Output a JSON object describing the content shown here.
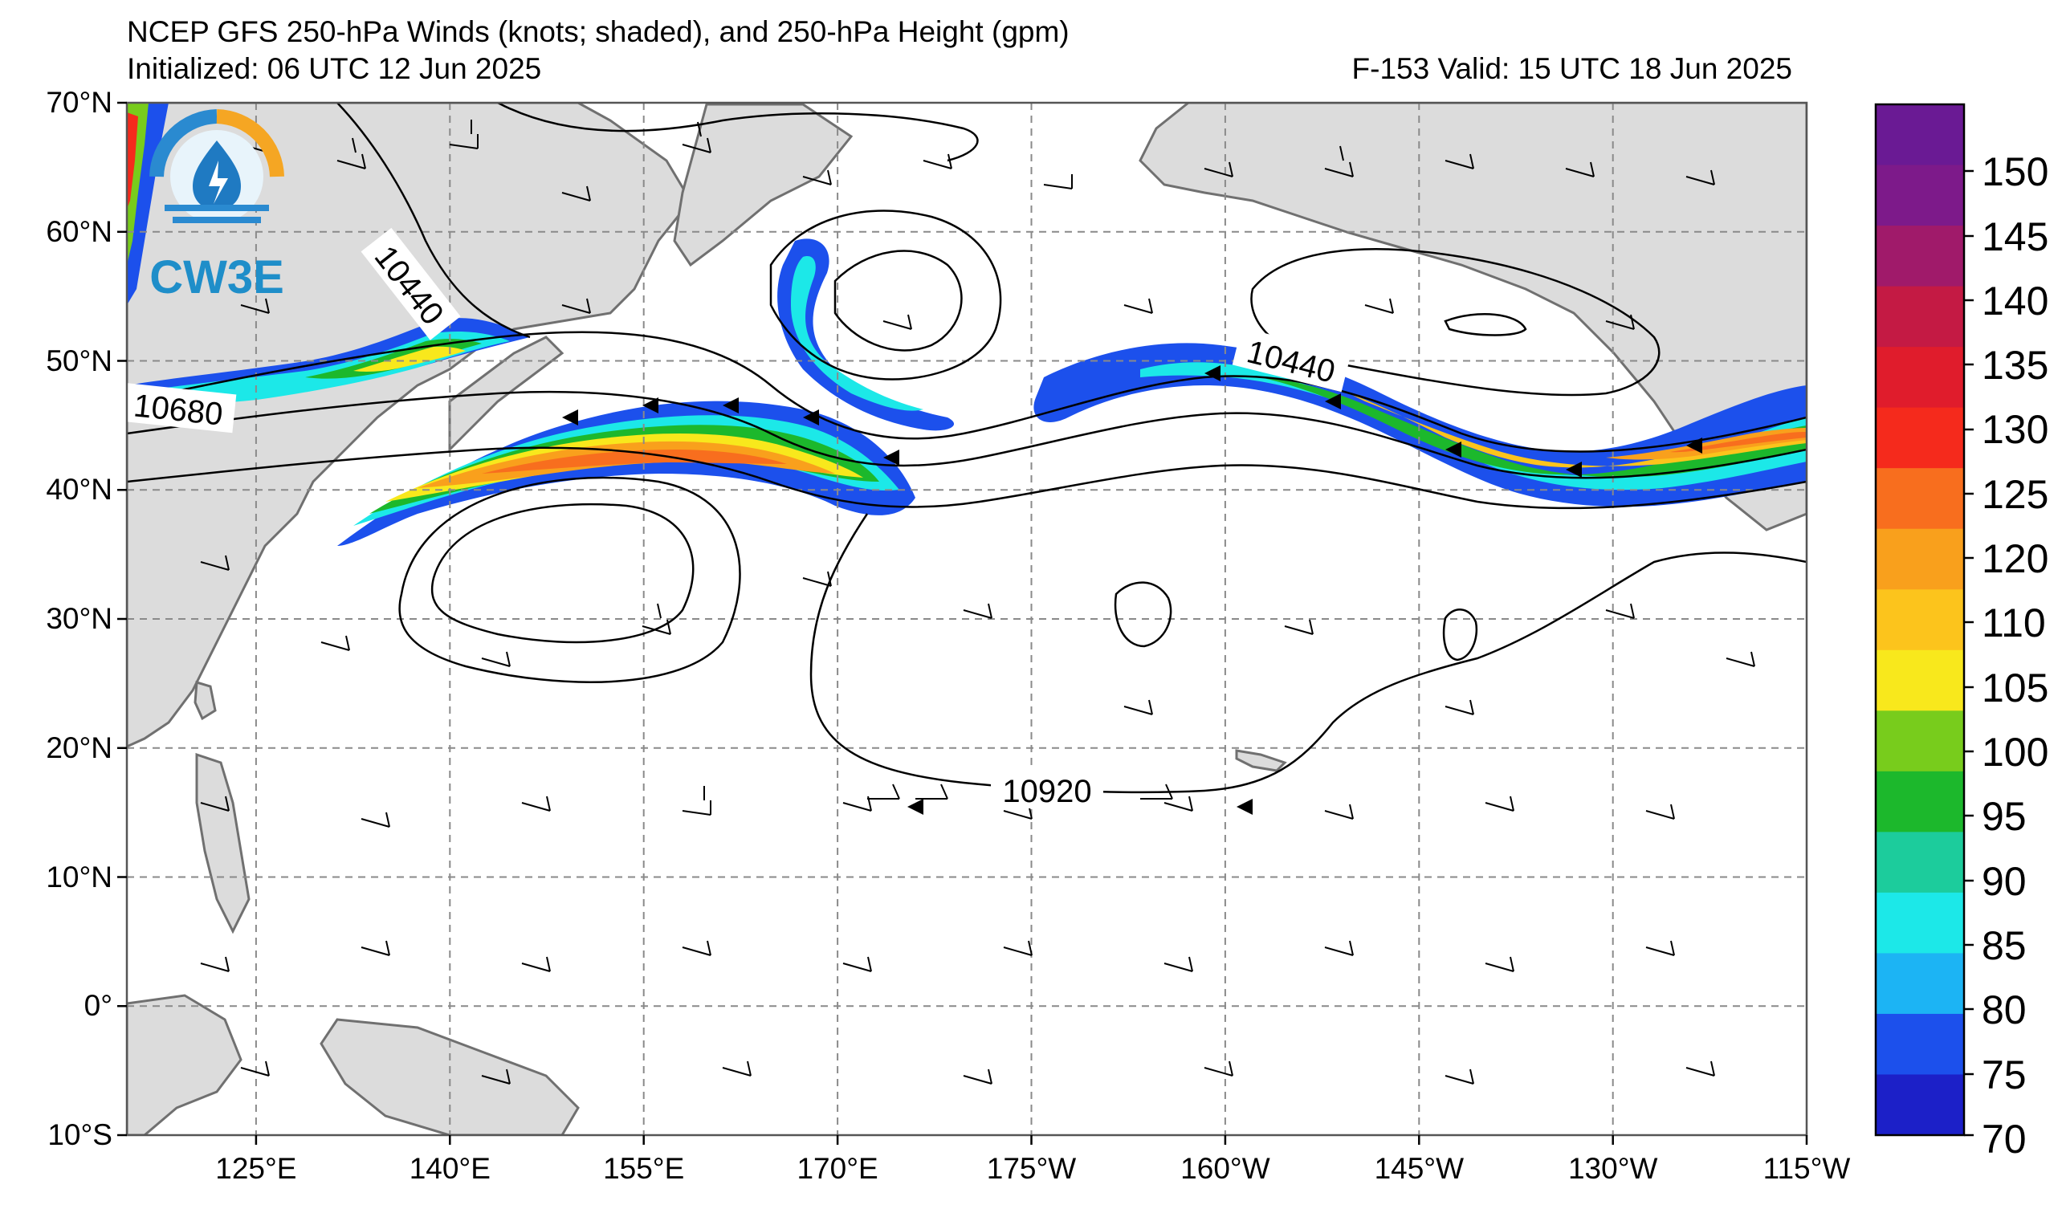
{
  "title": "NCEP GFS 250-hPa Winds (knots; shaded), and 250-hPa Height (gpm)",
  "initialized": "Initialized: 06 UTC 12 Jun 2025",
  "valid": "F-153  Valid: 15 UTC 18 Jun 2025",
  "logo_text": "CW3E",
  "lat_labels": [
    "70°N",
    "60°N",
    "50°N",
    "40°N",
    "30°N",
    "20°N",
    "10°N",
    "0°",
    "10°S"
  ],
  "lon_labels": [
    "125°E",
    "140°E",
    "155°E",
    "170°E",
    "175°W",
    "160°W",
    "145°W",
    "130°W",
    "115°W"
  ],
  "height_contour_labels": [
    "10440",
    "10680",
    "10440",
    "10920"
  ],
  "colorbar": {
    "labels": [
      "150",
      "145",
      "140",
      "135",
      "130",
      "125",
      "120",
      "110",
      "105",
      "100",
      "95",
      "90",
      "85",
      "80",
      "75",
      "70"
    ],
    "colors": [
      "#6a1a94",
      "#7d1a8a",
      "#a01a6a",
      "#c41a44",
      "#e01c2c",
      "#f52a1c",
      "#f86e1e",
      "#f9a01c",
      "#fcc41c",
      "#f8e81c",
      "#78cc1c",
      "#1cb82c",
      "#1ccc9c",
      "#1ce8e8",
      "#1cb4f4",
      "#1c50ec",
      "#1c20c8"
    ]
  },
  "map_colors": {
    "land": "#dcdcdc",
    "coast": "#707070",
    "grid": "#8a8a8a",
    "contour": "#000000"
  }
}
